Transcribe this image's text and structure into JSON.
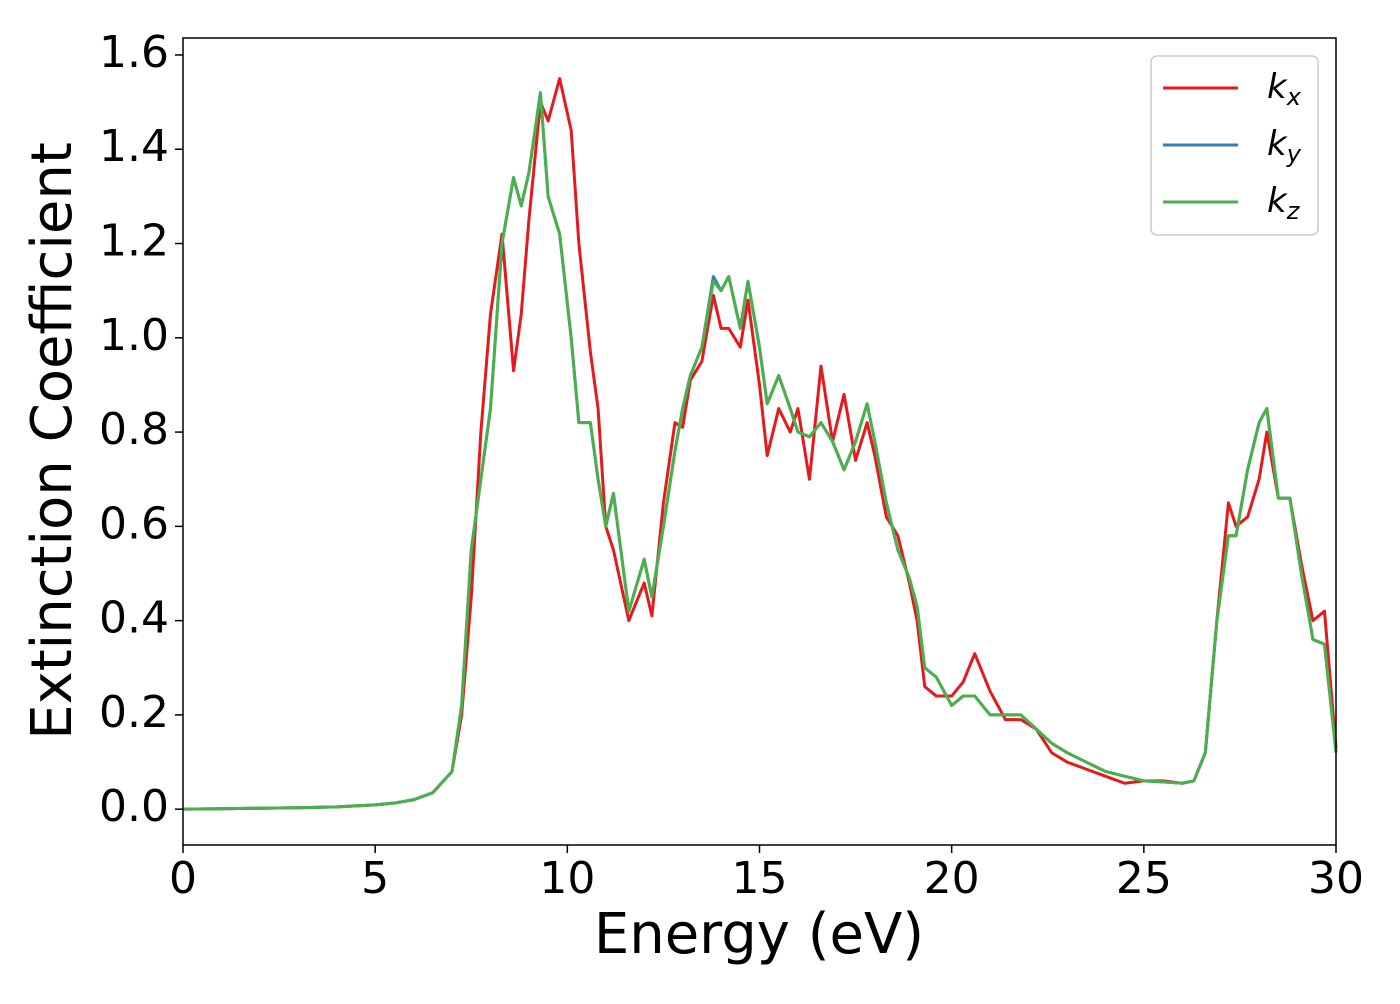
{
  "chart_data": {
    "type": "line",
    "xlabel": "Energy (eV)",
    "ylabel": "Extinction Coefficient",
    "x": [
      0,
      1,
      2,
      3,
      4,
      5,
      5.5,
      6,
      6.5,
      7,
      7.25,
      7.5,
      7.75,
      8,
      8.3,
      8.6,
      8.8,
      9,
      9.3,
      9.5,
      9.8,
      10.1,
      10.3,
      10.6,
      10.8,
      11,
      11.2,
      11.6,
      12,
      12.2,
      12.5,
      12.8,
      13,
      13.2,
      13.5,
      13.8,
      14,
      14.2,
      14.5,
      14.7,
      15,
      15.2,
      15.5,
      15.8,
      16,
      16.3,
      16.6,
      16.9,
      17.2,
      17.5,
      17.8,
      18,
      18.3,
      18.6,
      18.9,
      19.1,
      19.3,
      19.6,
      20,
      20.3,
      20.6,
      21,
      21.4,
      21.8,
      22.2,
      22.6,
      23,
      23.5,
      24,
      24.5,
      25,
      25.5,
      26,
      26.3,
      26.6,
      26.9,
      27.2,
      27.4,
      27.7,
      28,
      28.2,
      28.5,
      28.8,
      29.1,
      29.4,
      29.7,
      30
    ],
    "series": [
      {
        "name": "kx",
        "color": "#e41a1c",
        "values": [
          0,
          0.001,
          0.002,
          0.003,
          0.005,
          0.009,
          0.013,
          0.02,
          0.035,
          0.08,
          0.2,
          0.45,
          0.8,
          1.05,
          1.22,
          0.93,
          1.05,
          1.25,
          1.5,
          1.46,
          1.55,
          1.44,
          1.2,
          0.97,
          0.85,
          0.6,
          0.55,
          0.4,
          0.48,
          0.41,
          0.65,
          0.82,
          0.81,
          0.91,
          0.95,
          1.09,
          1.02,
          1.02,
          0.98,
          1.08,
          0.9,
          0.75,
          0.85,
          0.8,
          0.85,
          0.7,
          0.94,
          0.78,
          0.88,
          0.74,
          0.82,
          0.75,
          0.62,
          0.58,
          0.48,
          0.4,
          0.26,
          0.24,
          0.24,
          0.27,
          0.33,
          0.25,
          0.19,
          0.19,
          0.17,
          0.12,
          0.1,
          0.085,
          0.07,
          0.055,
          0.06,
          0.06,
          0.055,
          0.06,
          0.12,
          0.4,
          0.65,
          0.6,
          0.62,
          0.7,
          0.8,
          0.66,
          0.66,
          0.52,
          0.4,
          0.42,
          0.13
        ]
      },
      {
        "name": "ky",
        "color": "#377eb8",
        "values": [
          0,
          0.001,
          0.002,
          0.003,
          0.005,
          0.009,
          0.013,
          0.02,
          0.035,
          0.08,
          0.22,
          0.55,
          0.7,
          0.85,
          1.2,
          1.34,
          1.28,
          1.35,
          1.52,
          1.3,
          1.22,
          1.0,
          0.82,
          0.82,
          0.7,
          0.6,
          0.67,
          0.42,
          0.53,
          0.45,
          0.6,
          0.76,
          0.85,
          0.92,
          0.98,
          1.13,
          1.1,
          1.13,
          1.02,
          1.12,
          0.98,
          0.86,
          0.92,
          0.85,
          0.8,
          0.79,
          0.82,
          0.78,
          0.72,
          0.78,
          0.86,
          0.78,
          0.65,
          0.55,
          0.49,
          0.43,
          0.3,
          0.28,
          0.22,
          0.24,
          0.24,
          0.2,
          0.2,
          0.2,
          0.17,
          0.14,
          0.12,
          0.1,
          0.08,
          0.07,
          0.06,
          0.058,
          0.055,
          0.06,
          0.12,
          0.4,
          0.58,
          0.58,
          0.72,
          0.82,
          0.85,
          0.66,
          0.66,
          0.5,
          0.36,
          0.35,
          0.12
        ]
      },
      {
        "name": "kz",
        "color": "#4daf4a",
        "values": [
          0,
          0.001,
          0.002,
          0.003,
          0.005,
          0.009,
          0.013,
          0.02,
          0.035,
          0.08,
          0.22,
          0.55,
          0.7,
          0.85,
          1.2,
          1.34,
          1.28,
          1.35,
          1.52,
          1.3,
          1.22,
          1.0,
          0.82,
          0.82,
          0.7,
          0.6,
          0.67,
          0.42,
          0.53,
          0.45,
          0.6,
          0.76,
          0.85,
          0.92,
          0.98,
          1.12,
          1.1,
          1.13,
          1.02,
          1.12,
          0.98,
          0.86,
          0.92,
          0.85,
          0.8,
          0.79,
          0.82,
          0.78,
          0.72,
          0.78,
          0.86,
          0.78,
          0.65,
          0.55,
          0.49,
          0.43,
          0.3,
          0.28,
          0.22,
          0.24,
          0.24,
          0.2,
          0.2,
          0.2,
          0.17,
          0.14,
          0.12,
          0.1,
          0.08,
          0.07,
          0.06,
          0.058,
          0.055,
          0.06,
          0.12,
          0.4,
          0.58,
          0.58,
          0.72,
          0.82,
          0.85,
          0.66,
          0.66,
          0.5,
          0.36,
          0.35,
          0.12
        ]
      }
    ],
    "xlim": [
      0,
      30
    ],
    "xticks": [
      0,
      5,
      10,
      15,
      20,
      25,
      30
    ],
    "ylim": [
      -0.076,
      1.636
    ],
    "yticks": [
      {
        "value": 0,
        "label": "0.0"
      },
      0.2,
      0.4,
      0.6,
      0.8,
      {
        "value": 1,
        "label": "1.0"
      },
      1.2,
      1.4,
      1.6
    ],
    "legend": "upper right"
  }
}
